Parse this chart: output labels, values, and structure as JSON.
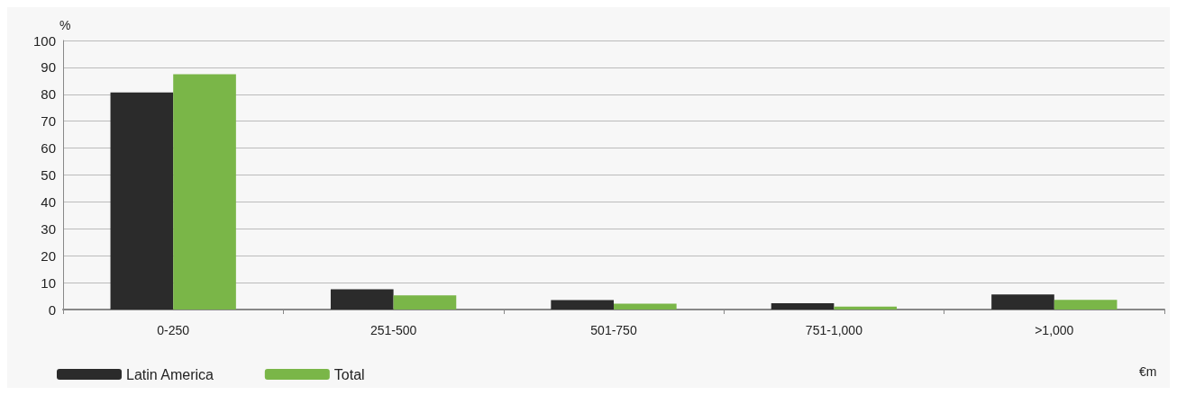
{
  "chart_data": {
    "type": "bar",
    "ylabel": "%",
    "xlabel": "€m",
    "categories": [
      "0-250",
      "251-500",
      "501-750",
      "751-1,000",
      ">1,000"
    ],
    "series": [
      {
        "name": "Latin America",
        "color": "#2b2b2b",
        "values": [
          80.7,
          7.5,
          3.5,
          2.3,
          5.6
        ]
      },
      {
        "name": "Total",
        "color": "#7ab648",
        "values": [
          87.5,
          5.3,
          2.2,
          1.1,
          3.6
        ]
      }
    ],
    "ylim": [
      0,
      100
    ],
    "yticks": [
      0,
      10,
      20,
      30,
      40,
      50,
      60,
      70,
      80,
      90,
      100
    ],
    "grid": "y",
    "legend": "bottom left"
  }
}
